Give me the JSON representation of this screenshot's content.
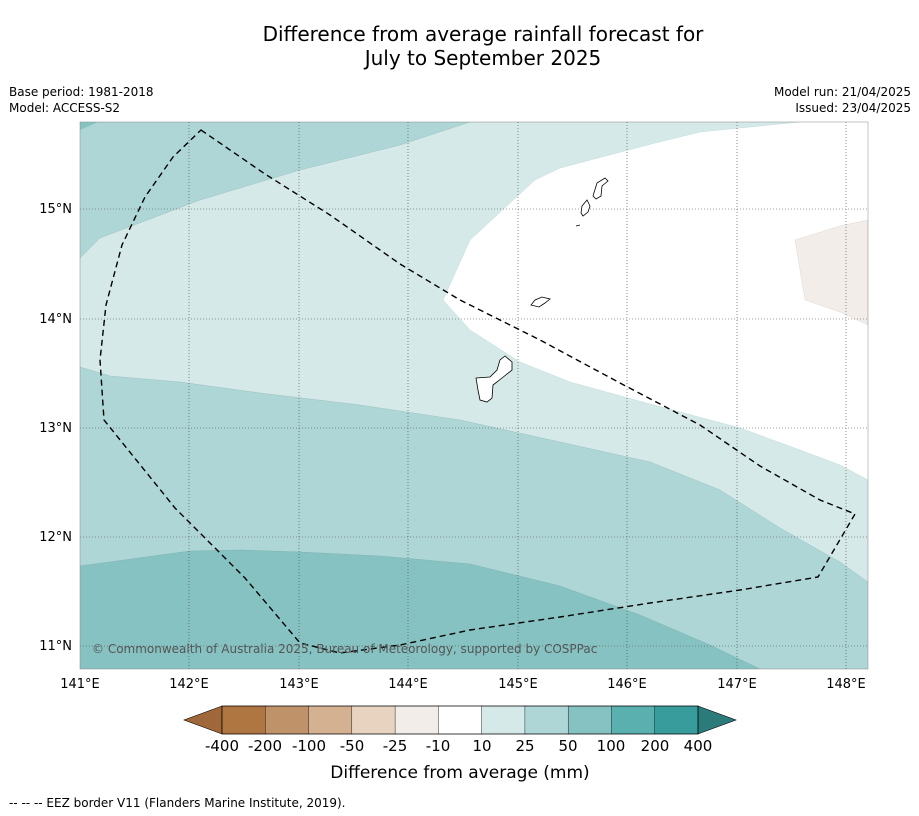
{
  "title": {
    "line1": "Difference from average rainfall forecast for",
    "line2": "July to September 2025"
  },
  "meta": {
    "base_period": "Base period: 1981-2018",
    "model": "Model: ACCESS-S2",
    "model_run": "Model run: 21/04/2025",
    "issued": "Issued: 23/04/2025"
  },
  "map": {
    "lat_labels": [
      "15°N",
      "14°N",
      "13°N",
      "12°N",
      "11°N"
    ],
    "lon_labels": [
      "141°E",
      "142°E",
      "143°E",
      "144°E",
      "145°E",
      "146°E",
      "147°E",
      "148°E"
    ],
    "copyright": "© Commonwealth of Australia 2025, Bureau of Meteorology, supported by COSPPac",
    "category_colors": {
      "neutral_-10_10": "#ffffff",
      "10_25": "#d5e9e8",
      "25_50": "#aed6d6",
      "50_100": "#86c2c1",
      "100_200": "#5aafaf",
      "minus25_minus10": "#f2ede8"
    }
  },
  "colorbar": {
    "title": "Difference from average (mm)",
    "tick_labels": [
      "-400",
      "-200",
      "-100",
      "-50",
      "-25",
      "-10",
      "10",
      "25",
      "50",
      "100",
      "200",
      "400"
    ],
    "colors": [
      "#a0683a",
      "#b07641",
      "#c0926a",
      "#d4b190",
      "#e7d3c0",
      "#f2ede8",
      "#ffffff",
      "#d5e9e8",
      "#aed6d6",
      "#86c2c1",
      "#5aafaf",
      "#379c9b",
      "#2a7b7a"
    ]
  },
  "footer": {
    "legend": "--  --  -- EEZ border V11 (Flanders Marine Institute, 2019)."
  }
}
